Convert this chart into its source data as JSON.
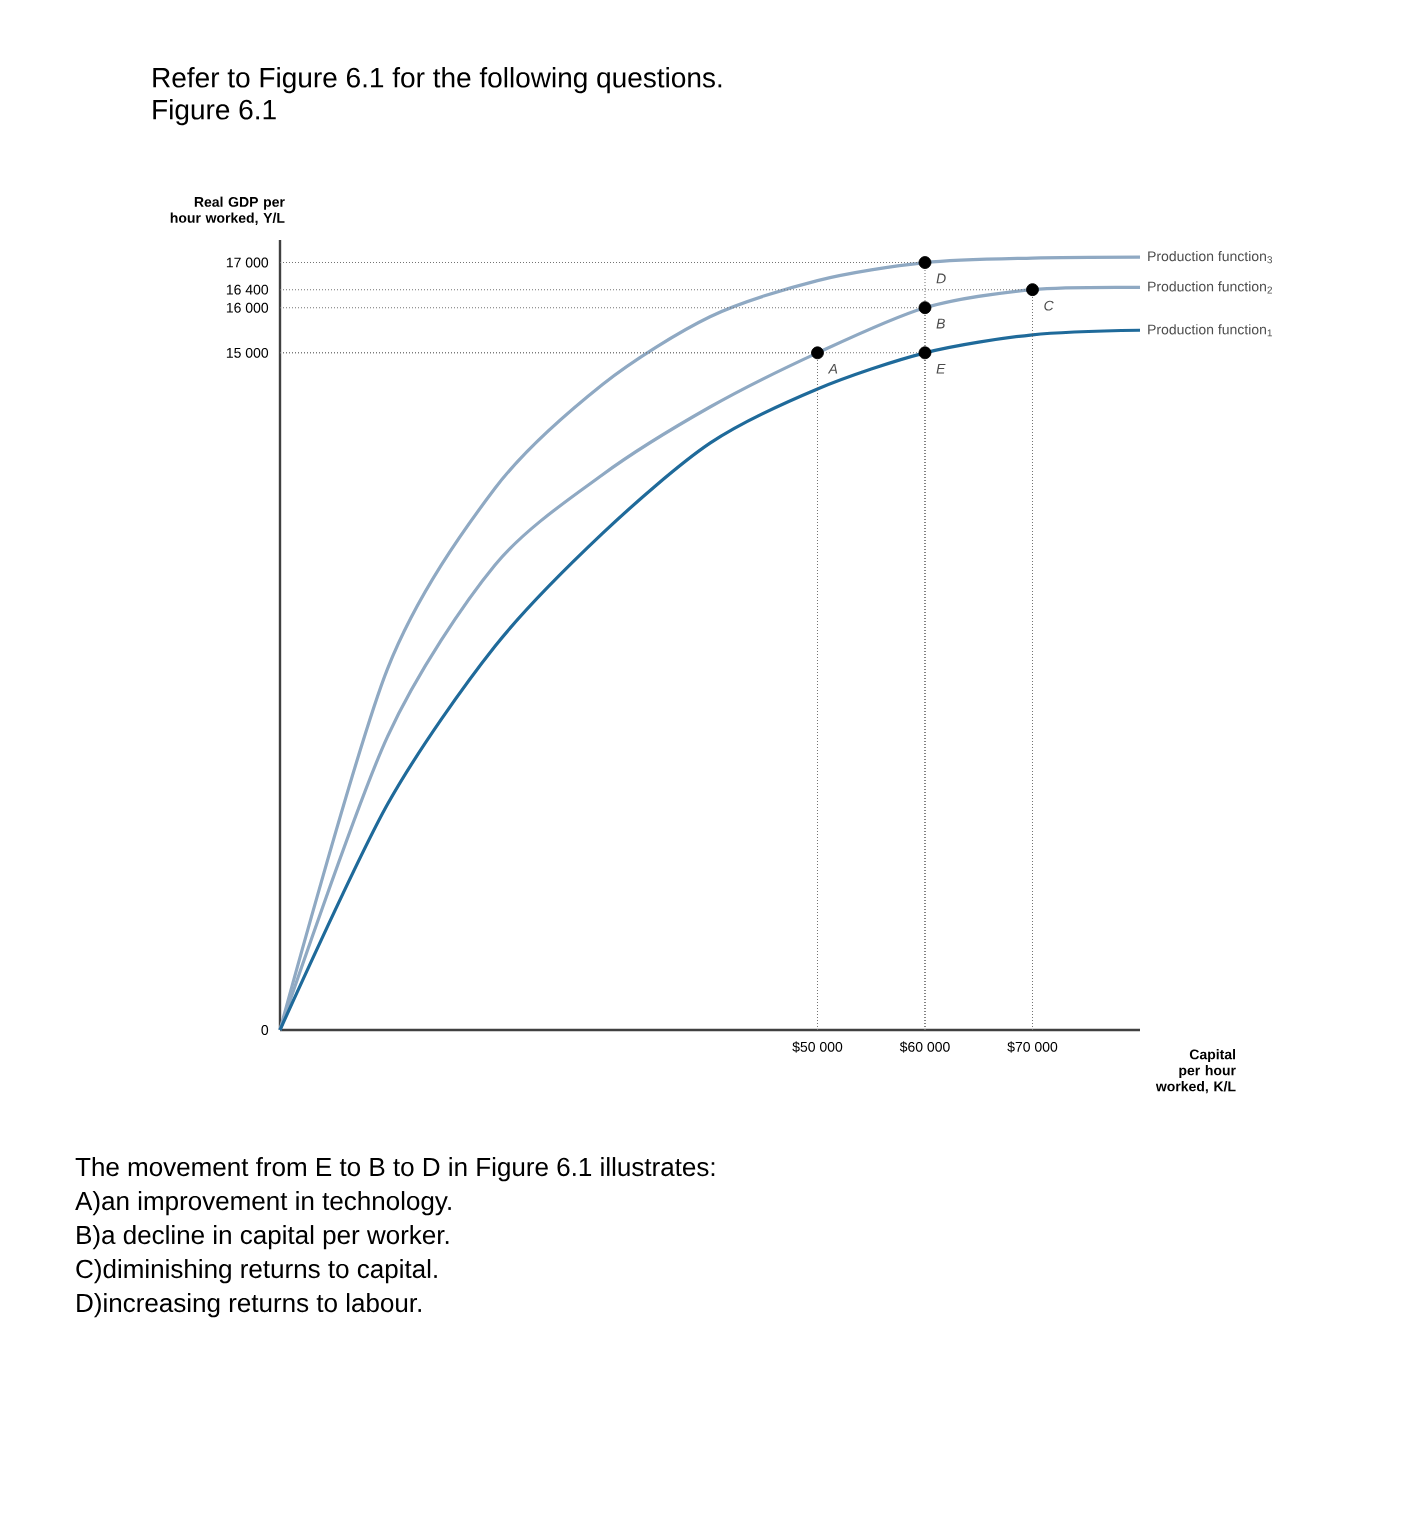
{
  "chart_data": {
    "type": "line",
    "title": "Refer to Figure 6.1 for the following questions.",
    "subtitle": "Figure 6.1",
    "ylabel": "Real GDP per hour worked, Y/L",
    "xlabel": "Capital per hour worked, K/L",
    "xlim": [
      0,
      80000
    ],
    "ylim": [
      0,
      17500
    ],
    "xticks": [
      {
        "value": 50000,
        "label": "$50 000"
      },
      {
        "value": 60000,
        "label": "$60 000"
      },
      {
        "value": 70000,
        "label": "$70 000"
      }
    ],
    "yticks": [
      0,
      {
        "value": 15000,
        "label": "15 000"
      },
      {
        "value": 16000,
        "label": "16 000"
      },
      {
        "value": 16400,
        "label": "16 400"
      },
      {
        "value": 17000,
        "label": "17 000"
      }
    ],
    "grid": true,
    "series": [
      {
        "name": "Production function$_{3}$",
        "color": "#8fa9c3",
        "x": [
          0,
          10000,
          20000,
          30000,
          40000,
          50000,
          60000,
          70000,
          80000
        ],
        "values": [
          0,
          8000,
          12000,
          14300,
          15800,
          16600,
          17000,
          17100,
          17120
        ]
      },
      {
        "name": "Production function$_{2}$",
        "color": "#8fa9c3",
        "x": [
          0,
          10000,
          20000,
          30000,
          40000,
          50000,
          60000,
          70000,
          80000
        ],
        "values": [
          0,
          6500,
          10300,
          12300,
          13800,
          15000,
          16000,
          16400,
          16450
        ]
      },
      {
        "name": "Production function$_{1}$",
        "color": "#1f6a9a",
        "x": [
          0,
          10000,
          20000,
          30000,
          40000,
          50000,
          60000,
          70000,
          80000
        ],
        "values": [
          0,
          5000,
          8500,
          11000,
          13000,
          14200,
          15000,
          15400,
          15500
        ]
      },
      {
        "type": "scatter",
        "color": "#000000",
        "x": [
          50000,
          60000,
          70000,
          60000,
          60000
        ],
        "values": [
          15000,
          16000,
          16400,
          17000,
          15000
        ]
      }
    ],
    "annotations": [
      {
        "text": "A",
        "x": 50000,
        "y": 15000
      },
      {
        "text": "B",
        "x": 60000,
        "y": 16000
      },
      {
        "text": "C",
        "x": 70000,
        "y": 16400
      },
      {
        "text": "D",
        "x": 60000,
        "y": 17000
      },
      {
        "text": "E",
        "x": 60000,
        "y": 15000
      },
      "The movement from E to B to D in Figure 6.1 illustrates:",
      "A)an improvement in technology.",
      "B)a decline in capital per worker.",
      "C)diminishing returns to capital.",
      "D)increasing returns to labour."
    ]
  }
}
